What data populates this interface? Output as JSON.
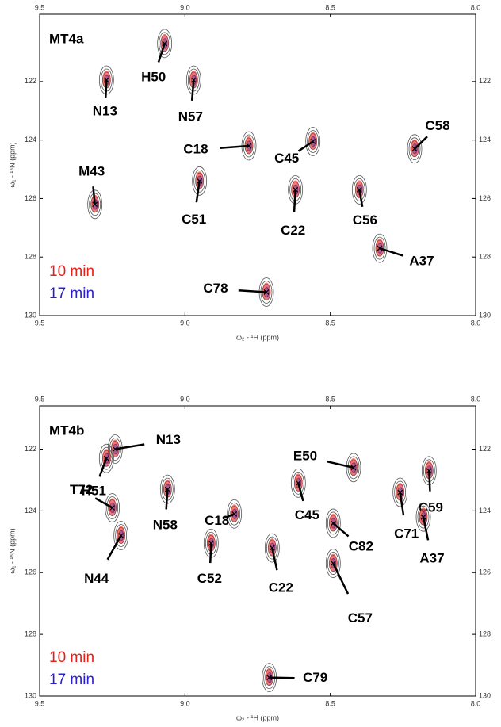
{
  "chart_data": [
    {
      "type": "scatter",
      "title": "MT4a",
      "x_label": "ω₂ - ¹H (ppm)",
      "y_label": "ω₁ - ¹⁵N (ppm)",
      "xlim": [
        9.5,
        8.0
      ],
      "ylim": [
        130,
        119.7
      ],
      "xticks": [
        {
          "value": 9.5,
          "label": "9.5"
        },
        {
          "value": 9.0,
          "label": "9.0"
        },
        {
          "value": 8.5,
          "label": "8.5"
        },
        {
          "value": 8.0,
          "label": "8.0"
        }
      ],
      "yticks": [
        122,
        124,
        126,
        128,
        130
      ],
      "series": [
        {
          "name": "10 min",
          "color": "#e8201a"
        },
        {
          "name": "17 min",
          "color": "#2a1fd0"
        }
      ],
      "peaks": {
        "labels": [
          "N13",
          "H50",
          "N57",
          "C18",
          "C45",
          "C51",
          "M43",
          "C22",
          "C56",
          "A37",
          "C58",
          "C78"
        ],
        "x": [
          9.27,
          9.07,
          8.97,
          8.78,
          8.56,
          8.95,
          9.31,
          8.62,
          8.4,
          8.33,
          8.21,
          8.72
        ],
        "y": [
          121.95,
          120.7,
          121.95,
          124.2,
          124.05,
          125.4,
          126.2,
          125.7,
          125.7,
          127.7,
          124.3,
          129.2
        ]
      }
    },
    {
      "type": "scatter",
      "title": "MT4b",
      "x_label": "ω₂ - ¹H (ppm)",
      "y_label": "ω₁ - ¹⁵N (ppm)",
      "xlim": [
        9.5,
        8.0
      ],
      "ylim": [
        130,
        120.6
      ],
      "xticks": [
        {
          "value": 9.5,
          "label": "9.5"
        },
        {
          "value": 9.0,
          "label": "9.0"
        },
        {
          "value": 8.5,
          "label": "8.5"
        },
        {
          "value": 8.0,
          "label": "8.0"
        }
      ],
      "yticks": [
        122,
        124,
        126,
        128,
        130
      ],
      "series": [
        {
          "name": "10 min",
          "color": "#e8201a"
        },
        {
          "name": "17 min",
          "color": "#2a1fd0"
        }
      ],
      "peaks": {
        "labels": [
          "N13",
          "H51",
          "N58",
          "T72",
          "N44",
          "C18",
          "C52",
          "C22",
          "C45",
          "E50",
          "C82",
          "C57",
          "C71",
          "C59",
          "A37",
          "C79"
        ],
        "x": [
          9.24,
          9.27,
          9.06,
          9.25,
          9.22,
          8.83,
          8.91,
          8.7,
          8.61,
          8.42,
          8.49,
          8.49,
          8.26,
          8.16,
          8.18,
          8.71
        ],
        "y": [
          122.0,
          122.3,
          123.3,
          123.9,
          124.8,
          124.1,
          125.05,
          125.2,
          123.1,
          122.6,
          124.4,
          125.7,
          123.4,
          122.7,
          124.2,
          129.4
        ]
      }
    }
  ]
}
